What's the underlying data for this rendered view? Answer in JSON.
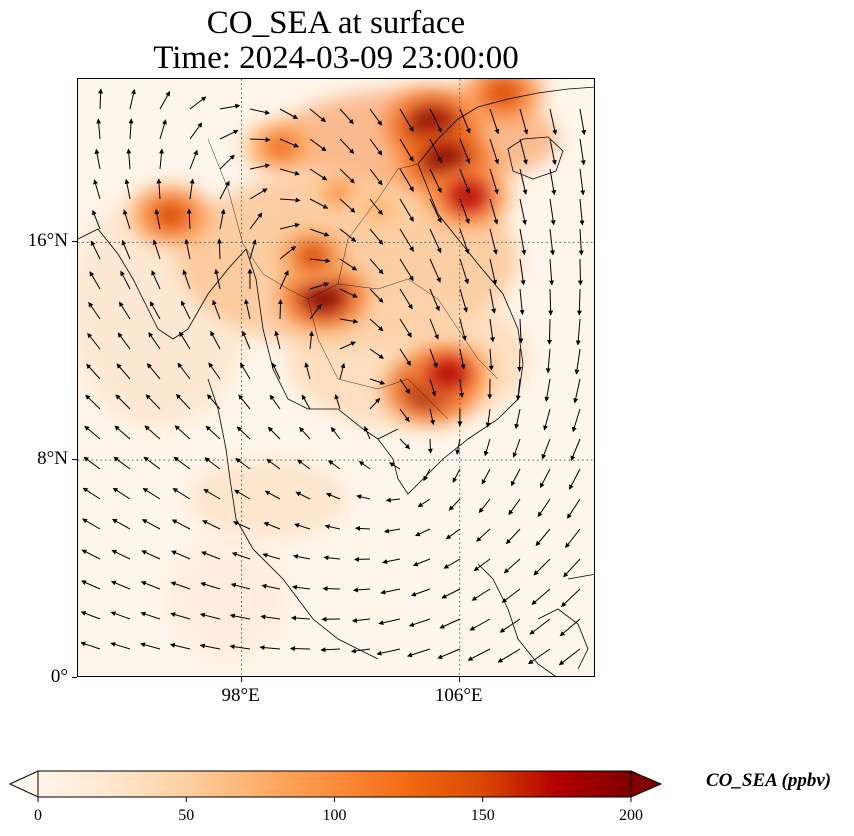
{
  "title": {
    "line1": "CO_SEA at surface",
    "line2": "Time: 2024-03-09 23:00:00"
  },
  "map": {
    "lon_range": [
      92,
      111
    ],
    "lat_range": [
      0,
      22
    ],
    "lat_ticks": [
      {
        "value": 16,
        "label": "16°N"
      },
      {
        "value": 8,
        "label": "8°N"
      },
      {
        "value": 0,
        "label": "0°"
      }
    ],
    "lon_ticks": [
      {
        "value": 98,
        "label": "98°E"
      },
      {
        "value": 106,
        "label": "106°E"
      }
    ],
    "gridlines": "dotted",
    "hotspots": [
      {
        "lon": 105.0,
        "lat": 20.3,
        "value": 220
      },
      {
        "lon": 105.5,
        "lat": 19.0,
        "value": 210
      },
      {
        "lon": 106.3,
        "lat": 17.7,
        "value": 180
      },
      {
        "lon": 107.6,
        "lat": 21.5,
        "value": 160
      },
      {
        "lon": 101.0,
        "lat": 14.0,
        "value": 190
      },
      {
        "lon": 100.6,
        "lat": 15.5,
        "value": 140
      },
      {
        "lon": 104.9,
        "lat": 10.6,
        "value": 200
      },
      {
        "lon": 105.6,
        "lat": 11.2,
        "value": 170
      },
      {
        "lon": 95.4,
        "lat": 17.0,
        "value": 150
      },
      {
        "lon": 99.4,
        "lat": 19.5,
        "value": 120
      },
      {
        "lon": 101.6,
        "lat": 17.8,
        "value": 95
      },
      {
        "lon": 103.0,
        "lat": 17.2,
        "value": 85
      }
    ]
  },
  "colorbar": {
    "min": 0,
    "max": 200,
    "ticks": [
      "0",
      "50",
      "100",
      "150",
      "200"
    ],
    "label": "CO_SEA (ppbv)",
    "extend": "both",
    "colors": [
      "#fff5eb",
      "#fee6ce",
      "#fdd0a2",
      "#fdae6b",
      "#fd8d3c",
      "#f16913",
      "#d94801",
      "#b30000",
      "#7f0000"
    ]
  }
}
